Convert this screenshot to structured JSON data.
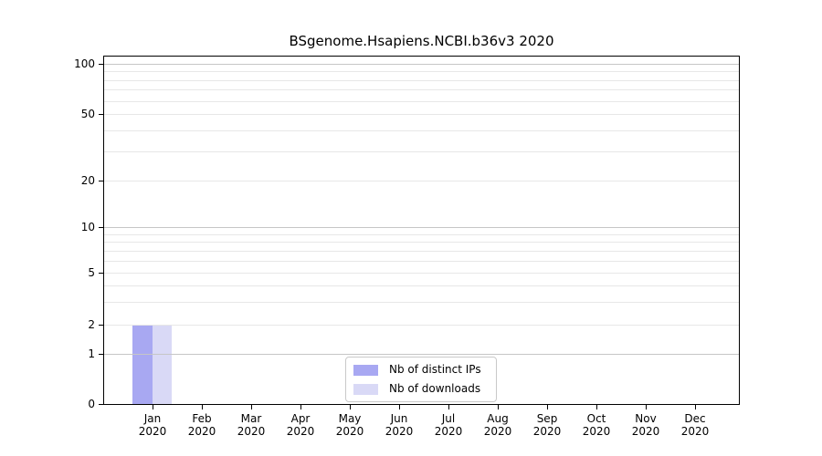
{
  "chart_data": {
    "type": "bar",
    "title": "BSgenome.Hsapiens.NCBI.b36v3 2020",
    "categories": [
      {
        "month": "Jan",
        "year": "2020"
      },
      {
        "month": "Feb",
        "year": "2020"
      },
      {
        "month": "Mar",
        "year": "2020"
      },
      {
        "month": "Apr",
        "year": "2020"
      },
      {
        "month": "May",
        "year": "2020"
      },
      {
        "month": "Jun",
        "year": "2020"
      },
      {
        "month": "Jul",
        "year": "2020"
      },
      {
        "month": "Aug",
        "year": "2020"
      },
      {
        "month": "Sep",
        "year": "2020"
      },
      {
        "month": "Oct",
        "year": "2020"
      },
      {
        "month": "Nov",
        "year": "2020"
      },
      {
        "month": "Dec",
        "year": "2020"
      }
    ],
    "series": [
      {
        "name": "Nb of distinct IPs",
        "color": "#a8a8f2",
        "values": [
          2,
          0,
          0,
          0,
          0,
          0,
          0,
          0,
          0,
          0,
          0,
          0
        ]
      },
      {
        "name": "Nb of downloads",
        "color": "#d9d9f6",
        "values": [
          2,
          0,
          0,
          0,
          0,
          0,
          0,
          0,
          0,
          0,
          0,
          0
        ]
      }
    ],
    "y_ticks": [
      0,
      1,
      2,
      5,
      10,
      20,
      50,
      100
    ],
    "y_minor_gridlines": [
      3,
      4,
      6,
      7,
      8,
      9,
      30,
      40,
      60,
      70,
      80,
      90
    ],
    "y_scale": "log-like",
    "ylim": [
      0,
      110
    ],
    "xlabel": "",
    "ylabel": "",
    "grid": true,
    "legend_position": "lower center"
  },
  "colors": {
    "background": "#ffffff",
    "axis": "#000000",
    "grid_minor": "#e7e7e7",
    "grid_decade": "#c6c6c6",
    "legend_border": "#c9c9c9"
  }
}
